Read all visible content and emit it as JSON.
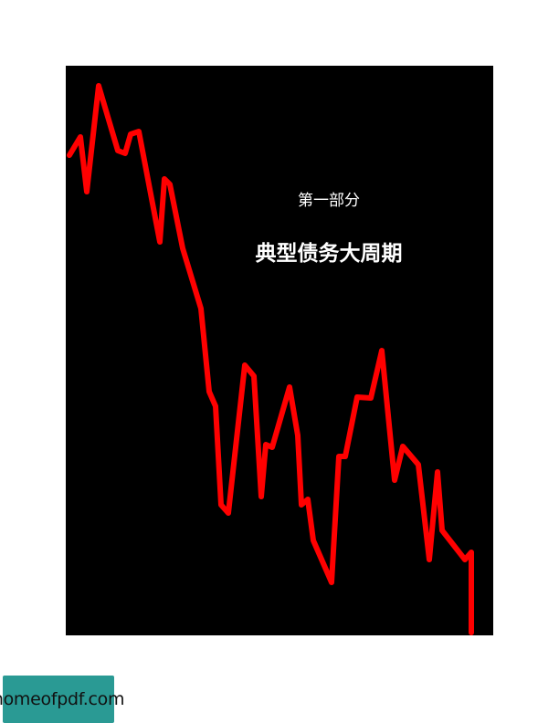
{
  "cover": {
    "part_label": "第一部分",
    "title": "典型债务大周期",
    "background_color": "#000000",
    "line_color": "#ff0000"
  },
  "watermark": {
    "text": "homeofpdf.com",
    "background_color": "#2a9a94"
  }
}
